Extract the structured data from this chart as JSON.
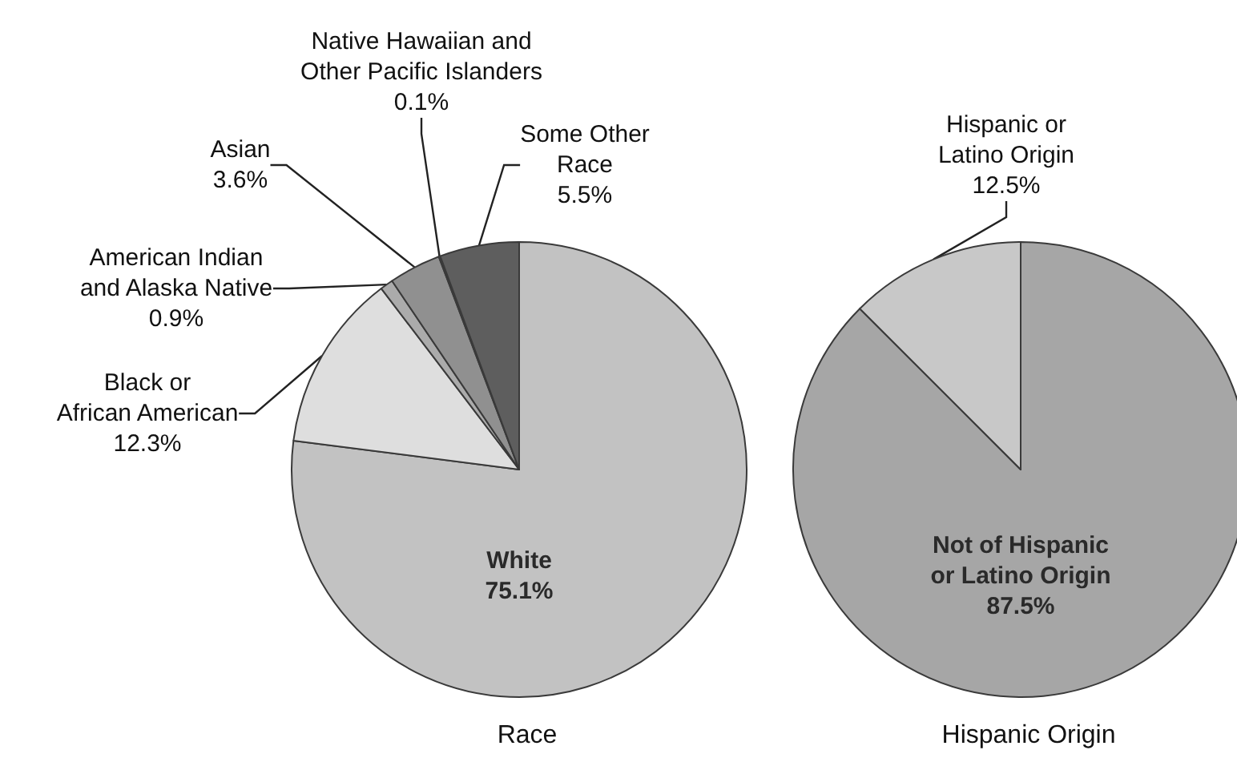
{
  "chart_data": [
    {
      "type": "pie",
      "title": "Race",
      "categories": [
        "White",
        "Black or\nAfrican American",
        "American Indian\nand Alaska Native",
        "Asian",
        "Native Hawaiian and\nOther Pacific Islanders",
        "Some Other\nRace"
      ],
      "values": [
        75.1,
        12.3,
        0.9,
        3.6,
        0.1,
        5.5
      ],
      "value_labels": [
        "75.1%",
        "12.3%",
        "0.9%",
        "3.6%",
        "0.1%",
        "5.5%"
      ],
      "colors": [
        "#c2c2c2",
        "#dedede",
        "#ababab",
        "#909090",
        "#111111",
        "#5e5e5e"
      ]
    },
    {
      "type": "pie",
      "title": "Hispanic Origin",
      "categories": [
        "Not of Hispanic\nor Latino Origin",
        "Hispanic or\nLatino Origin"
      ],
      "values": [
        87.5,
        12.5
      ],
      "value_labels": [
        "87.5%",
        "12.5%"
      ],
      "colors": [
        "#a6a6a6",
        "#c8c8c8"
      ]
    }
  ]
}
